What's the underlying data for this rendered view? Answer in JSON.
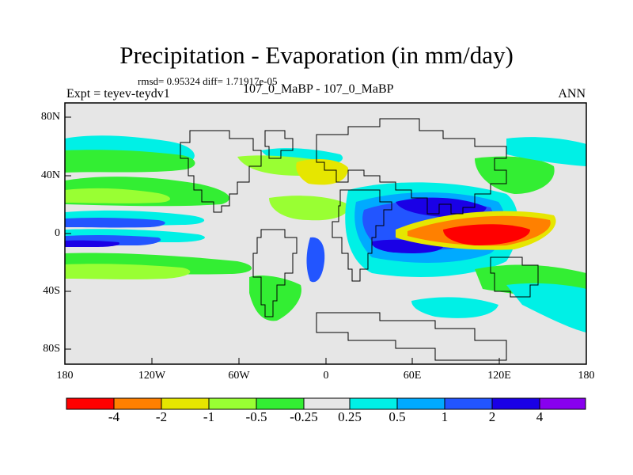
{
  "title": "Precipitation - Evaporation (in mm/day)",
  "stats": "rmsd= 0.95324 diff= 1.71917e-05",
  "experiment": "Expt = teyev-teydv1",
  "subtitle": "107_0_MaBP - 107_0_MaBP",
  "season": "ANN",
  "map": {
    "lat_ticks": [
      "80N",
      "40N",
      "0",
      "40S",
      "80S"
    ],
    "lon_ticks": [
      "180",
      "120W",
      "60W",
      "0",
      "60E",
      "120E",
      "180"
    ],
    "background_color": "#e6e6e6"
  },
  "colorbar": {
    "colors": [
      "#ff0000",
      "#ff8000",
      "#e6e600",
      "#99ff33",
      "#33ee33",
      "#e6e6e6",
      "#00f0e6",
      "#00aaff",
      "#2255ff",
      "#1a00e6",
      "#8800ee"
    ],
    "labels": [
      "-4",
      "-2",
      "-1",
      "-0.5",
      "-0.25",
      "0.25",
      "0.5",
      "1",
      "2",
      "4"
    ]
  }
}
